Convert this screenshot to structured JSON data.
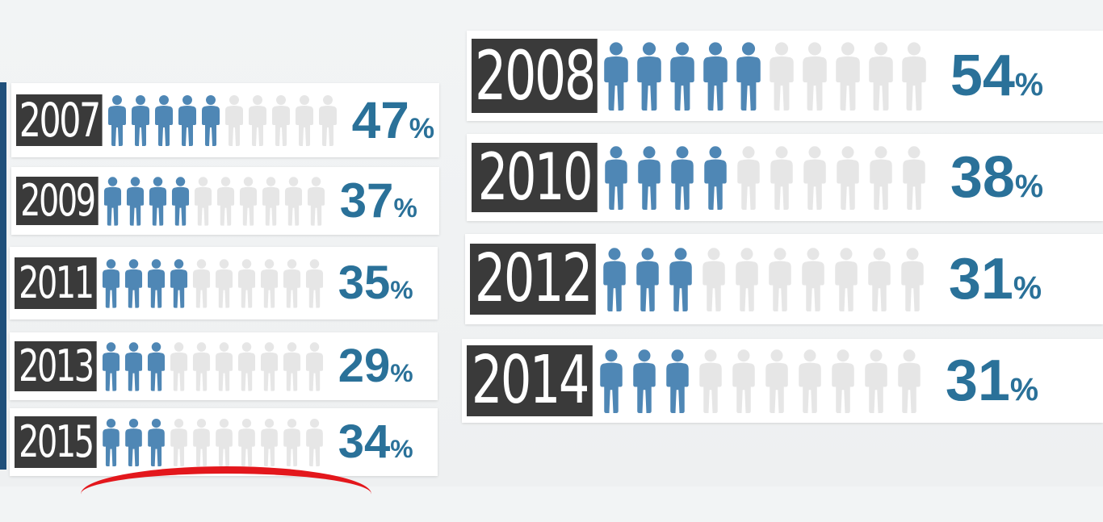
{
  "colors": {
    "filled": "#4f87b5",
    "empty": "#e6e6e6",
    "pct": "#2a7199",
    "year_bg": "#3a3a3a"
  },
  "chart_data": {
    "type": "table",
    "icons_total": 10,
    "rows": [
      {
        "year": "2007",
        "value": 47,
        "pct_text": "47",
        "filled_icons": 5
      },
      {
        "year": "2009",
        "value": 37,
        "pct_text": "37",
        "filled_icons": 4
      },
      {
        "year": "2011",
        "value": 35,
        "pct_text": "35",
        "filled_icons": 4
      },
      {
        "year": "2013",
        "value": 29,
        "pct_text": "29",
        "filled_icons": 3
      },
      {
        "year": "2015",
        "value": 34,
        "pct_text": "34",
        "filled_icons": 3
      },
      {
        "year": "2008",
        "value": 54,
        "pct_text": "54",
        "filled_icons": 5
      },
      {
        "year": "2010",
        "value": 38,
        "pct_text": "38",
        "filled_icons": 4
      },
      {
        "year": "2012",
        "value": 31,
        "pct_text": "31",
        "filled_icons": 3
      },
      {
        "year": "2014",
        "value": 31,
        "pct_text": "31",
        "filled_icons": 3
      }
    ],
    "percent_symbol": "%"
  }
}
